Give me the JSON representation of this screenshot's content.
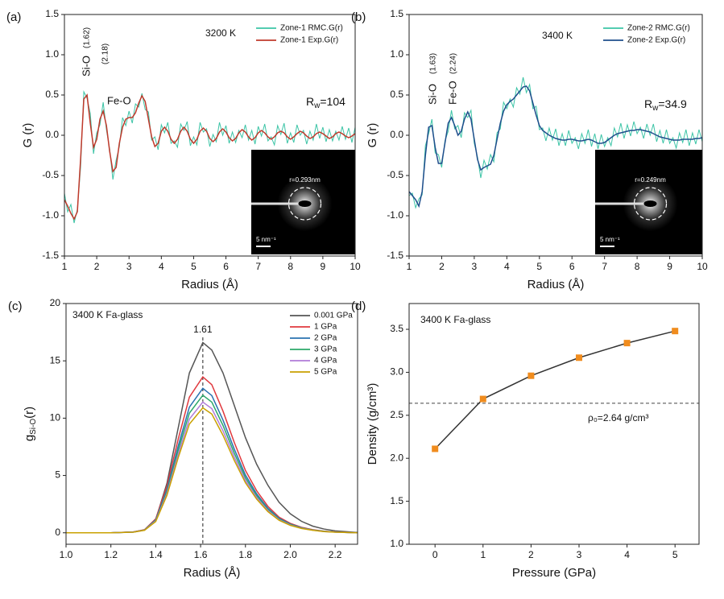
{
  "chart_data": [
    {
      "type": "line",
      "panel_label": "(a)",
      "x_label": "Radius (Å)",
      "y_label": "G (r)",
      "x": [
        1.0,
        1.1,
        1.2,
        1.3,
        1.4,
        1.5,
        1.6,
        1.7,
        1.8,
        1.9,
        2.0,
        2.1,
        2.2,
        2.3,
        2.4,
        2.5,
        2.6,
        2.7,
        2.8,
        2.9,
        3.0,
        3.1,
        3.2,
        3.3,
        3.4,
        3.5,
        3.6,
        3.7,
        3.8,
        3.9,
        4.0,
        4.1,
        4.2,
        4.3,
        4.4,
        4.5,
        4.6,
        4.7,
        4.8,
        4.9,
        5.0,
        5.1,
        5.2,
        5.3,
        5.4,
        5.5,
        5.6,
        5.7,
        5.8,
        5.9,
        6.0,
        6.1,
        6.2,
        6.3,
        6.4,
        6.5,
        6.6,
        6.7,
        6.8,
        6.9,
        7.0,
        7.1,
        7.2,
        7.3,
        7.4,
        7.5,
        7.6,
        7.7,
        7.8,
        7.9,
        8.0,
        8.1,
        8.2,
        8.3,
        8.4,
        8.5,
        8.6,
        8.7,
        8.8,
        8.9,
        9.0,
        9.1,
        9.2,
        9.3,
        9.4,
        9.5,
        9.6,
        9.7,
        9.8,
        9.9,
        10.0
      ],
      "series": [
        {
          "name": "Zone-1 RMC.G(r)",
          "color": "#3cc4a6",
          "values": [
            -0.72,
            -0.95,
            -0.86,
            -1.09,
            -0.92,
            -0.4,
            0.54,
            0.46,
            0.27,
            -0.23,
            0.03,
            0.13,
            0.41,
            0.07,
            -0.17,
            -0.55,
            -0.31,
            -0.14,
            0.22,
            0.12,
            0.3,
            0.15,
            0.39,
            0.35,
            0.52,
            0.32,
            0.29,
            -0.06,
            -0.02,
            -0.18,
            0.13,
            0.03,
            0.16,
            -0.1,
            -0.07,
            -0.15,
            0.14,
            0.06,
            0.17,
            -0.13,
            -0.02,
            -0.12,
            0.16,
            0.04,
            0.08,
            -0.14,
            0.01,
            -0.08,
            0.16,
            0,
            0.12,
            -0.1,
            0.04,
            -0.09,
            0.06,
            -0.03,
            0.13,
            -0.06,
            0.06,
            -0.11,
            0.11,
            -0.01,
            0.14,
            -0.07,
            -0.02,
            -0.12,
            0.12,
            0.01,
            0.15,
            -0.1,
            0.03,
            -0.09,
            0.13,
            0,
            0.06,
            -0.11,
            0.05,
            -0.06,
            0.14,
            -0.04,
            0.1,
            -0.08,
            0.07,
            -0.07,
            0.05,
            -0.06,
            0.11,
            -0.05,
            0.09,
            -0.09,
            0.1
          ]
        },
        {
          "name": "Zone-1 Exp.G(r)",
          "color": "#c0392b",
          "values": [
            -0.8,
            -0.88,
            -0.97,
            -1.04,
            -0.95,
            -0.3,
            0.45,
            0.5,
            0.15,
            -0.15,
            -0.05,
            0.2,
            0.3,
            0.12,
            -0.2,
            -0.45,
            -0.4,
            -0.1,
            0.1,
            0.2,
            0.22,
            0.22,
            0.28,
            0.4,
            0.49,
            0.42,
            0.2,
            -0.02,
            -0.14,
            -0.1,
            0.05,
            0.1,
            0.05,
            -0.05,
            -0.1,
            -0.05,
            0.05,
            0.1,
            0.05,
            -0.05,
            -0.1,
            -0.05,
            0.05,
            0.09,
            0.05,
            -0.04,
            -0.08,
            -0.04,
            0.04,
            0.08,
            0.04,
            -0.03,
            -0.07,
            -0.04,
            0.03,
            0.07,
            0.04,
            -0.02,
            -0.06,
            -0.03,
            0.03,
            0.06,
            0.03,
            -0.02,
            -0.05,
            -0.02,
            0.03,
            0.05,
            0.03,
            -0.02,
            -0.05,
            -0.02,
            0.02,
            0.05,
            0.03,
            -0.01,
            -0.04,
            -0.02,
            0.02,
            0.04,
            0.02,
            -0.01,
            -0.04,
            -0.02,
            0.02,
            0.04,
            0.02,
            -0.01,
            -0.03,
            -0.01,
            0.02
          ]
        }
      ],
      "xlim": [
        1,
        10
      ],
      "ylim": [
        -1.5,
        1.5
      ],
      "xticks": [
        1,
        2,
        3,
        4,
        5,
        6,
        7,
        8,
        9,
        10
      ],
      "yticks": [
        {
          "value": -1.5,
          "label": "-1.5"
        },
        {
          "value": -1,
          "label": "-1.0"
        },
        {
          "value": -0.5,
          "label": "-0.5"
        },
        {
          "value": 0,
          "label": "0.0"
        },
        {
          "value": 0.5,
          "label": "0.5"
        },
        {
          "value": 1,
          "label": "1.0"
        },
        {
          "value": 1.5,
          "label": "1.5"
        }
      ],
      "annotations": [
        "3200 K",
        "Si-O",
        "(1.62)",
        "Fe-O",
        "(2.18)"
      ],
      "rw": [
        "R",
        "w",
        "=104"
      ],
      "inset_labels": [
        "r=0.293nm",
        "5 nm⁻¹"
      ]
    },
    {
      "type": "line",
      "panel_label": "(b)",
      "x_label": "Radius (Å)",
      "y_label": "G (r)",
      "x": [
        1.0,
        1.1,
        1.2,
        1.3,
        1.4,
        1.5,
        1.6,
        1.7,
        1.8,
        1.9,
        2.0,
        2.1,
        2.2,
        2.3,
        2.4,
        2.5,
        2.6,
        2.7,
        2.8,
        2.9,
        3.0,
        3.1,
        3.2,
        3.3,
        3.4,
        3.5,
        3.6,
        3.7,
        3.8,
        3.9,
        4.0,
        4.1,
        4.2,
        4.3,
        4.4,
        4.5,
        4.6,
        4.7,
        4.8,
        4.9,
        5.0,
        5.1,
        5.2,
        5.3,
        5.4,
        5.5,
        5.6,
        5.7,
        5.8,
        5.9,
        6.0,
        6.1,
        6.2,
        6.3,
        6.4,
        6.5,
        6.6,
        6.7,
        6.8,
        6.9,
        7.0,
        7.1,
        7.2,
        7.3,
        7.4,
        7.5,
        7.6,
        7.7,
        7.8,
        7.9,
        8.0,
        8.1,
        8.2,
        8.3,
        8.4,
        8.5,
        8.6,
        8.7,
        8.8,
        8.9,
        9.0,
        9.1,
        9.2,
        9.3,
        9.4,
        9.5,
        9.6,
        9.7,
        9.8,
        9.9,
        10.0
      ],
      "series": [
        {
          "name": "Zone-2 RMC.G(r)",
          "color": "#3cc4a6",
          "values": [
            -0.75,
            -0.72,
            -0.9,
            -0.79,
            -0.74,
            -0.13,
            0.02,
            0.2,
            -0.22,
            -0.24,
            -0.4,
            -0.07,
            0.05,
            0.31,
            0.08,
            0.12,
            -0.03,
            0.28,
            0.22,
            0.31,
            -0.1,
            -0.27,
            -0.53,
            -0.31,
            -0.42,
            -0.24,
            -0.33,
            0.03,
            0.08,
            0.41,
            0.33,
            0.45,
            0.35,
            0.59,
            0.51,
            0.72,
            0.53,
            0.63,
            0.33,
            0.36,
            0.07,
            0.09,
            -0.07,
            0.09,
            -0.06,
            0.08,
            -0.13,
            0.02,
            -0.13,
            0.06,
            -0.1,
            -0.03,
            -0.17,
            0.02,
            -0.1,
            0.07,
            -0.14,
            0.02,
            -0.17,
            0.01,
            -0.14,
            -0.03,
            -0.13,
            0.09,
            -0.02,
            0.15,
            -0.04,
            0.13,
            -0.01,
            0.17,
            0.02,
            0.1,
            -0.04,
            0.14,
            0,
            0.14,
            -0.08,
            0.06,
            -0.1,
            0.07,
            -0.1,
            -0.03,
            -0.16,
            0.03,
            -0.09,
            0.07,
            -0.13,
            0.03,
            -0.11,
            0.07,
            -0.08
          ]
        },
        {
          "name": "Zone-2 Exp.G(r)",
          "color": "#1f4e8c",
          "values": [
            -0.7,
            -0.75,
            -0.8,
            -0.88,
            -0.7,
            -0.25,
            0.1,
            0.12,
            -0.15,
            -0.35,
            -0.35,
            -0.1,
            0.15,
            0.22,
            0.12,
            0,
            0.05,
            0.2,
            0.29,
            0.2,
            -0.05,
            -0.3,
            -0.43,
            -0.4,
            -0.38,
            -0.36,
            -0.25,
            -0.05,
            0.15,
            0.3,
            0.38,
            0.42,
            0.45,
            0.5,
            0.55,
            0.6,
            0.61,
            0.55,
            0.4,
            0.25,
            0.12,
            0.06,
            0.03,
            0,
            -0.02,
            -0.04,
            -0.05,
            -0.06,
            -0.06,
            -0.05,
            -0.05,
            -0.06,
            -0.07,
            -0.07,
            -0.06,
            -0.05,
            -0.06,
            -0.08,
            -0.1,
            -0.1,
            -0.09,
            -0.06,
            -0.03,
            0,
            0.02,
            0.03,
            0.04,
            0.05,
            0.06,
            0.06,
            0.07,
            0.07,
            0.06,
            0.05,
            0.04,
            0.02,
            0,
            -0.02,
            -0.03,
            -0.04,
            -0.05,
            -0.06,
            -0.06,
            -0.06,
            -0.05,
            -0.05,
            -0.05,
            -0.05,
            -0.04,
            -0.04,
            -0.03
          ]
        }
      ],
      "xlim": [
        1,
        10
      ],
      "ylim": [
        -1.5,
        1.5
      ],
      "xticks": [
        1,
        2,
        3,
        4,
        5,
        6,
        7,
        8,
        9,
        10
      ],
      "yticks": [
        {
          "value": -1.5,
          "label": "-1.5"
        },
        {
          "value": -1,
          "label": "-1.0"
        },
        {
          "value": -0.5,
          "label": "-0.5"
        },
        {
          "value": 0,
          "label": "0.0"
        },
        {
          "value": 0.5,
          "label": "0.5"
        },
        {
          "value": 1,
          "label": "1.0"
        },
        {
          "value": 1.5,
          "label": "1.5"
        }
      ],
      "annotations": [
        "3400 K",
        "Si-O",
        "(1.63)",
        "Fe-O",
        "(2.24)"
      ],
      "rw": [
        "R",
        "w",
        "=34.9"
      ],
      "inset_labels": [
        "r=0.249nm",
        "5 nm⁻¹"
      ]
    },
    {
      "type": "line",
      "panel_label": "(c)",
      "x_label": "Radius (Å)",
      "y_label_parts": [
        "g",
        "Si-O",
        "(r)"
      ],
      "x": [
        1.0,
        1.1,
        1.2,
        1.3,
        1.35,
        1.4,
        1.45,
        1.5,
        1.55,
        1.61,
        1.65,
        1.7,
        1.75,
        1.8,
        1.85,
        1.9,
        1.95,
        2.0,
        2.05,
        2.1,
        2.15,
        2.2,
        2.3
      ],
      "series": [
        {
          "name": "0.001 GPa",
          "color": "#555555",
          "values": [
            0,
            0,
            0,
            0.08,
            0.25,
            1.16,
            4.32,
            9.13,
            13.94,
            16.6,
            15.94,
            13.94,
            11.12,
            8.3,
            5.98,
            4.15,
            2.66,
            1.66,
            1.0,
            0.58,
            0.33,
            0.17,
            0.03
          ]
        },
        {
          "name": "1 GPa",
          "color": "#e0393e",
          "values": [
            0,
            0,
            0,
            0.07,
            0.27,
            1.22,
            4.08,
            8.16,
            11.83,
            13.6,
            12.92,
            10.61,
            7.89,
            5.44,
            3.67,
            2.31,
            1.36,
            0.82,
            0.48,
            0.27,
            0.14,
            0.07,
            0
          ]
        },
        {
          "name": "2 GPa",
          "color": "#2a72b0",
          "values": [
            0,
            0,
            0,
            0.06,
            0.25,
            1.13,
            3.78,
            7.56,
            10.96,
            12.6,
            11.97,
            9.83,
            7.31,
            5.04,
            3.4,
            2.14,
            1.26,
            0.76,
            0.44,
            0.25,
            0.13,
            0.06,
            0
          ]
        },
        {
          "name": "3 GPa",
          "color": "#2ca86a",
          "values": [
            0,
            0,
            0,
            0.06,
            0.24,
            1.08,
            3.6,
            7.2,
            10.44,
            12,
            11.4,
            9.36,
            6.96,
            4.8,
            3.24,
            2.04,
            1.2,
            0.72,
            0.42,
            0.24,
            0.12,
            0.06,
            0
          ]
        },
        {
          "name": "4 GPa",
          "color": "#b07cd8",
          "values": [
            0,
            0,
            0,
            0.06,
            0.23,
            1.03,
            3.42,
            6.84,
            9.92,
            11.4,
            10.83,
            8.89,
            6.61,
            4.56,
            3.08,
            1.94,
            1.14,
            0.68,
            0.4,
            0.23,
            0.11,
            0.06,
            0
          ]
        },
        {
          "name": "5 GPa",
          "color": "#c9a100",
          "values": [
            0,
            0,
            0,
            0.05,
            0.22,
            0.98,
            3.27,
            6.54,
            9.48,
            10.9,
            10.36,
            8.5,
            6.32,
            4.36,
            2.94,
            1.85,
            1.09,
            0.65,
            0.38,
            0.22,
            0.11,
            0.05,
            0
          ]
        }
      ],
      "xlim": [
        1.0,
        2.3
      ],
      "ylim": [
        -1,
        20
      ],
      "xticks": [
        {
          "value": 1,
          "label": "1.0"
        },
        {
          "value": 1.2,
          "label": "1.2"
        },
        {
          "value": 1.4,
          "label": "1.4"
        },
        {
          "value": 1.6,
          "label": "1.6"
        },
        {
          "value": 1.8,
          "label": "1.8"
        },
        {
          "value": 2,
          "label": "2.0"
        },
        {
          "value": 2.2,
          "label": "2.2"
        }
      ],
      "yticks": [
        0,
        5,
        10,
        15,
        20
      ],
      "annotations": [
        "3400 K Fa-glass"
      ],
      "vline": 1.61
    },
    {
      "type": "line",
      "panel_label": "(d)",
      "x_label": "Pressure (GPa)",
      "y_label": "Density (g/cm³)",
      "x": [
        0,
        1,
        2,
        3,
        4,
        5
      ],
      "series": [
        {
          "color": "#f08c1e",
          "line_color": "#333333",
          "marker": "square",
          "values": [
            2.11,
            2.69,
            2.96,
            3.17,
            3.34,
            3.48
          ]
        }
      ],
      "xlim": [
        -0.54,
        5.5
      ],
      "ylim": [
        1.0,
        3.8
      ],
      "xticks": [
        0,
        1,
        2,
        3,
        4,
        5
      ],
      "yticks": [
        {
          "value": 1,
          "label": "1.0"
        },
        {
          "value": 1.5,
          "label": "1.5"
        },
        {
          "value": 2,
          "label": "2.0"
        },
        {
          "value": 2.5,
          "label": "2.5"
        },
        {
          "value": 3,
          "label": "3.0"
        },
        {
          "value": 3.5,
          "label": "3.5"
        }
      ],
      "annotations": [
        "3400 K Fa-glass"
      ],
      "hline": 2.64,
      "hline_label": "ρ₀=2.64 g/cm³"
    }
  ]
}
